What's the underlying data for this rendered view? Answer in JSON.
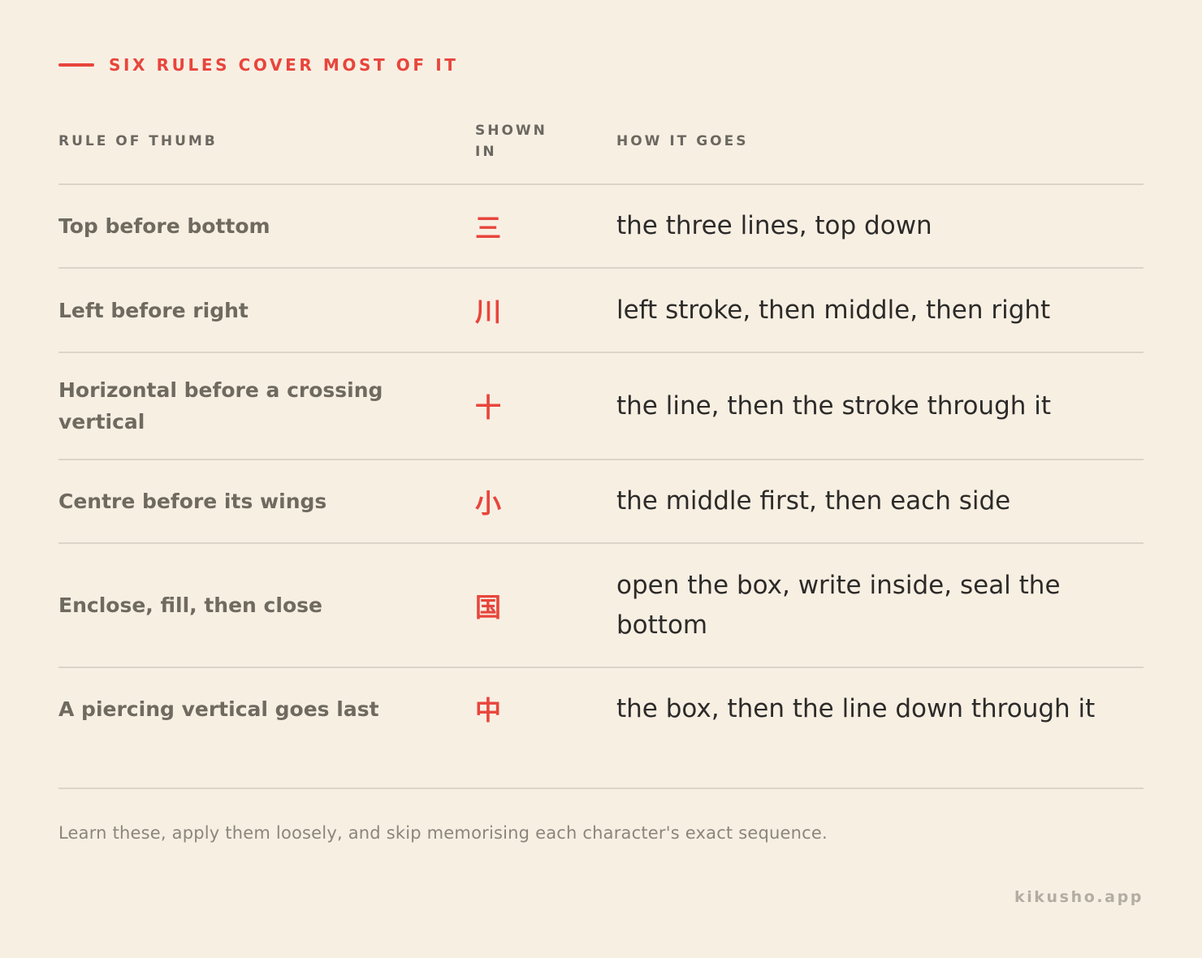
{
  "eyebrow": "SIX RULES COVER MOST OF IT",
  "columns": {
    "rule": "RULE OF THUMB",
    "shown_in": "SHOWN IN",
    "how": "HOW IT GOES"
  },
  "rows": [
    {
      "rule": "Top before bottom",
      "char": "三",
      "how": "the three lines, top down"
    },
    {
      "rule": "Left before right",
      "char": "川",
      "how": "left stroke, then middle, then right"
    },
    {
      "rule": "Horizontal before a crossing vertical",
      "char": "十",
      "how": "the line, then the stroke through it"
    },
    {
      "rule": "Centre before its wings",
      "char": "小",
      "how": "the middle first, then each side"
    },
    {
      "rule": "Enclose, fill, then close",
      "char": "国",
      "how": "open the box, write inside, seal the bottom"
    },
    {
      "rule": "A piercing vertical goes last",
      "char": "中",
      "how": "the box, then the line down through it"
    }
  ],
  "footnote": "Learn these, apply them loosely, and skip memorising each character's exact sequence.",
  "brand": "kikusho.app",
  "colors": {
    "background": "#f8efe3",
    "accent": "#e8453c",
    "text": "#2c2b29",
    "muted": "#6f6a60",
    "rule_line": "#dcd4c8"
  }
}
